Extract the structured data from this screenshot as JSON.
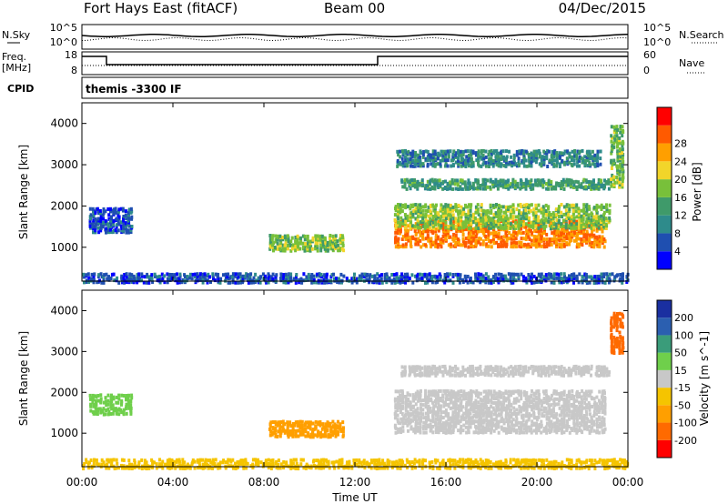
{
  "header": {
    "station": "Fort Hays East (fitACF)",
    "beam": "Beam 00",
    "date": "04/Dec/2015"
  },
  "strips": {
    "nsky_label": "N.Sky",
    "nsky_ticks": [
      "10^5",
      "10^0"
    ],
    "nsearch_label": "N.Search",
    "nsearch_ticks": [
      "10^5",
      "10^0"
    ],
    "freq_label": [
      "Freq.",
      "[MHz]"
    ],
    "freq_ticks": [
      "18",
      "8"
    ],
    "nave_label": "Nave",
    "nave_ticks": [
      "60",
      "0"
    ],
    "cpid_label": "CPID",
    "cpid_value": "themis -3300 IF"
  },
  "colors": {
    "power_scale": [
      "#0000ff",
      "#1f4fb0",
      "#2e8b8b",
      "#3f9a6a",
      "#78c03a",
      "#f2d52a",
      "#ff9f00",
      "#ff5a00",
      "#ff0000"
    ],
    "velocity_scale": [
      "#ff0000",
      "#ff6a00",
      "#ff9f00",
      "#f5c400",
      "#c8c8c8",
      "#6fcf4b",
      "#3a9c7a",
      "#2b5fb0",
      "#1a2fa0"
    ],
    "ground_scatter": "#c8c8c8"
  },
  "chart_data": [
    {
      "type": "heatmap",
      "name": "Power",
      "xlabel": "Time UT",
      "ylabel": "Slant Range [km]",
      "x_ticks": [
        "00:00",
        "04:00",
        "08:00",
        "12:00",
        "16:00",
        "20:00",
        "00:00"
      ],
      "xlim_hours": [
        0,
        24
      ],
      "y_ticks": [
        1000,
        2000,
        3000,
        4000
      ],
      "ylim": [
        180,
        4500
      ],
      "colorbar_label": "Power [dB]",
      "colorbar_ticks": [
        "4",
        "8",
        "12",
        "16",
        "20",
        "24",
        "28"
      ],
      "colorbar_range": [
        0,
        32
      ],
      "regions": [
        {
          "t": [
            13.7,
            23.0
          ],
          "r": [
            1050,
            1700
          ],
          "value": 28
        },
        {
          "t": [
            13.7,
            23.2
          ],
          "r": [
            1500,
            2100
          ],
          "value": 18
        },
        {
          "t": [
            14.0,
            23.2
          ],
          "r": [
            2450,
            2700
          ],
          "value": 13
        },
        {
          "t": [
            13.8,
            22.8
          ],
          "r": [
            3000,
            3400
          ],
          "value": 10
        },
        {
          "t": [
            8.2,
            11.5
          ],
          "r": [
            950,
            1350
          ],
          "value": 18
        },
        {
          "t": [
            0.3,
            2.2
          ],
          "r": [
            1400,
            2000
          ],
          "value": 6
        },
        {
          "t": [
            23.2,
            23.8
          ],
          "r": [
            2500,
            4000
          ],
          "value": 17
        },
        {
          "t": [
            0.0,
            24.0
          ],
          "r": [
            180,
            420
          ],
          "value": 6
        }
      ]
    },
    {
      "type": "heatmap",
      "name": "Velocity",
      "xlabel": "Time UT",
      "ylabel": "Slant Range [km]",
      "x_ticks": [
        "00:00",
        "04:00",
        "08:00",
        "12:00",
        "16:00",
        "20:00",
        "00:00"
      ],
      "xlim_hours": [
        0,
        24
      ],
      "y_ticks": [
        1000,
        2000,
        3000,
        4000
      ],
      "ylim": [
        180,
        4500
      ],
      "colorbar_label": "Velocity [m s^-1]",
      "colorbar_ticks": [
        "200",
        "100",
        "50",
        "15",
        "-15",
        "-50",
        "-100",
        "-200"
      ],
      "regions": [
        {
          "t": [
            13.7,
            23.0
          ],
          "r": [
            1050,
            2100
          ],
          "value": 0
        },
        {
          "t": [
            14.0,
            23.2
          ],
          "r": [
            2450,
            2700
          ],
          "value": 0
        },
        {
          "t": [
            8.2,
            11.5
          ],
          "r": [
            950,
            1350
          ],
          "value": -70
        },
        {
          "t": [
            0.3,
            2.2
          ],
          "r": [
            1500,
            2000
          ],
          "value": 30
        },
        {
          "t": [
            23.2,
            23.8
          ],
          "r": [
            3000,
            4000
          ],
          "value": -150
        },
        {
          "t": [
            0.0,
            24.0
          ],
          "r": [
            180,
            420
          ],
          "value": -30
        }
      ]
    }
  ]
}
